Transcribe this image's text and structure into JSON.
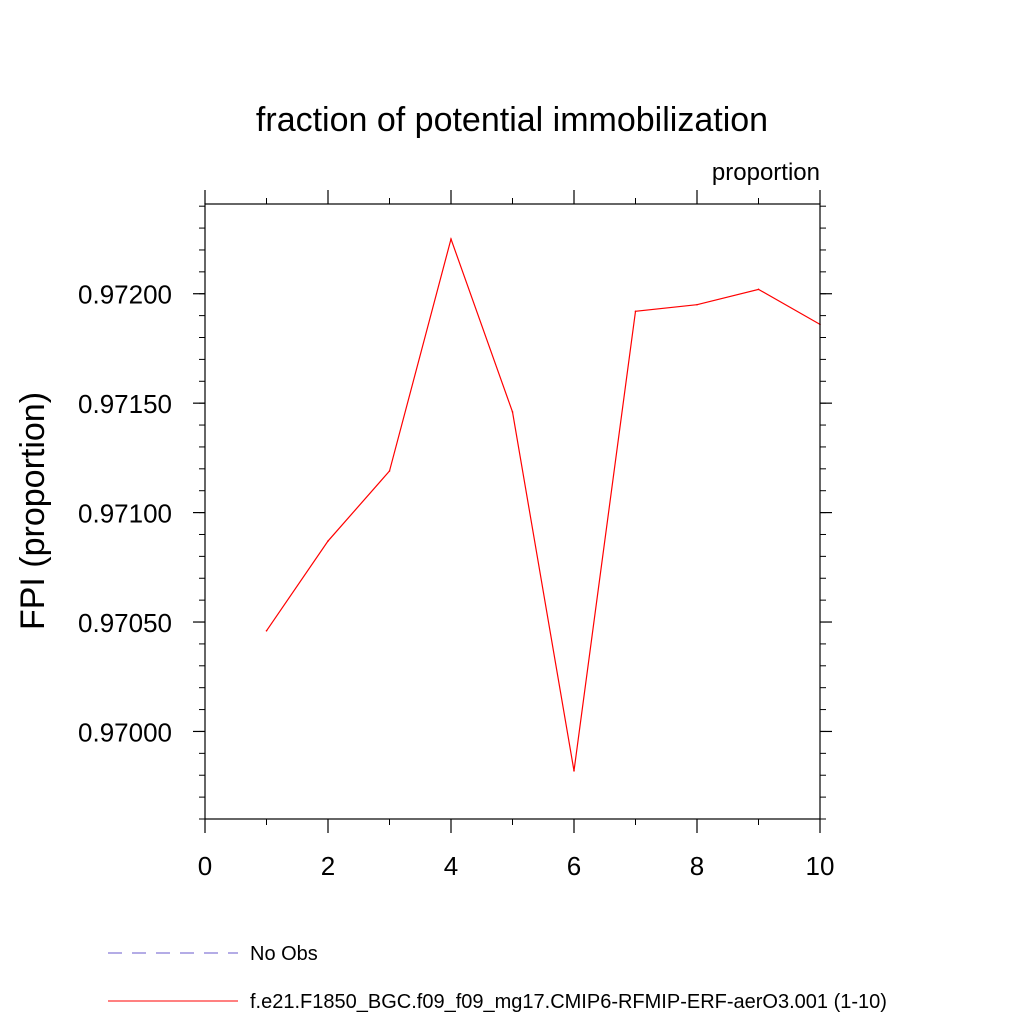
{
  "chart_data": {
    "type": "line",
    "title": "fraction of potential immobilization",
    "units_label": "proportion",
    "ylabel": "FPI  (proportion)",
    "xlabel": "",
    "xlim": [
      0,
      10
    ],
    "ylim": [
      0.9696,
      0.97241
    ],
    "x_ticks": [
      0,
      2,
      4,
      6,
      8,
      10
    ],
    "x_tick_labels": [
      "0",
      "2",
      "4",
      "6",
      "8",
      "10"
    ],
    "x_minor_step": 1,
    "y_ticks": [
      0.97,
      0.9705,
      0.971,
      0.9715,
      0.972
    ],
    "y_tick_labels": [
      "0.97000",
      "0.97050",
      "0.97100",
      "0.97150",
      "0.97200"
    ],
    "y_minor_step": 0.0001,
    "grid": false,
    "legend_position": "bottom-left",
    "series": [
      {
        "name": "No Obs",
        "color": "#6a5acd",
        "dash": "dashed",
        "x": [],
        "y": []
      },
      {
        "name": "f.e21.F1850_BGC.f09_f09_mg17.CMIP6-RFMIP-ERF-aerO3.001 (1-10)",
        "color": "#ff0000",
        "dash": "solid",
        "x": [
          1,
          2,
          3,
          4,
          5,
          6,
          7,
          8,
          9,
          10
        ],
        "y": [
          0.97046,
          0.97087,
          0.97119,
          0.97225,
          0.97146,
          0.96982,
          0.97192,
          0.97195,
          0.97202,
          0.97186
        ]
      }
    ]
  }
}
